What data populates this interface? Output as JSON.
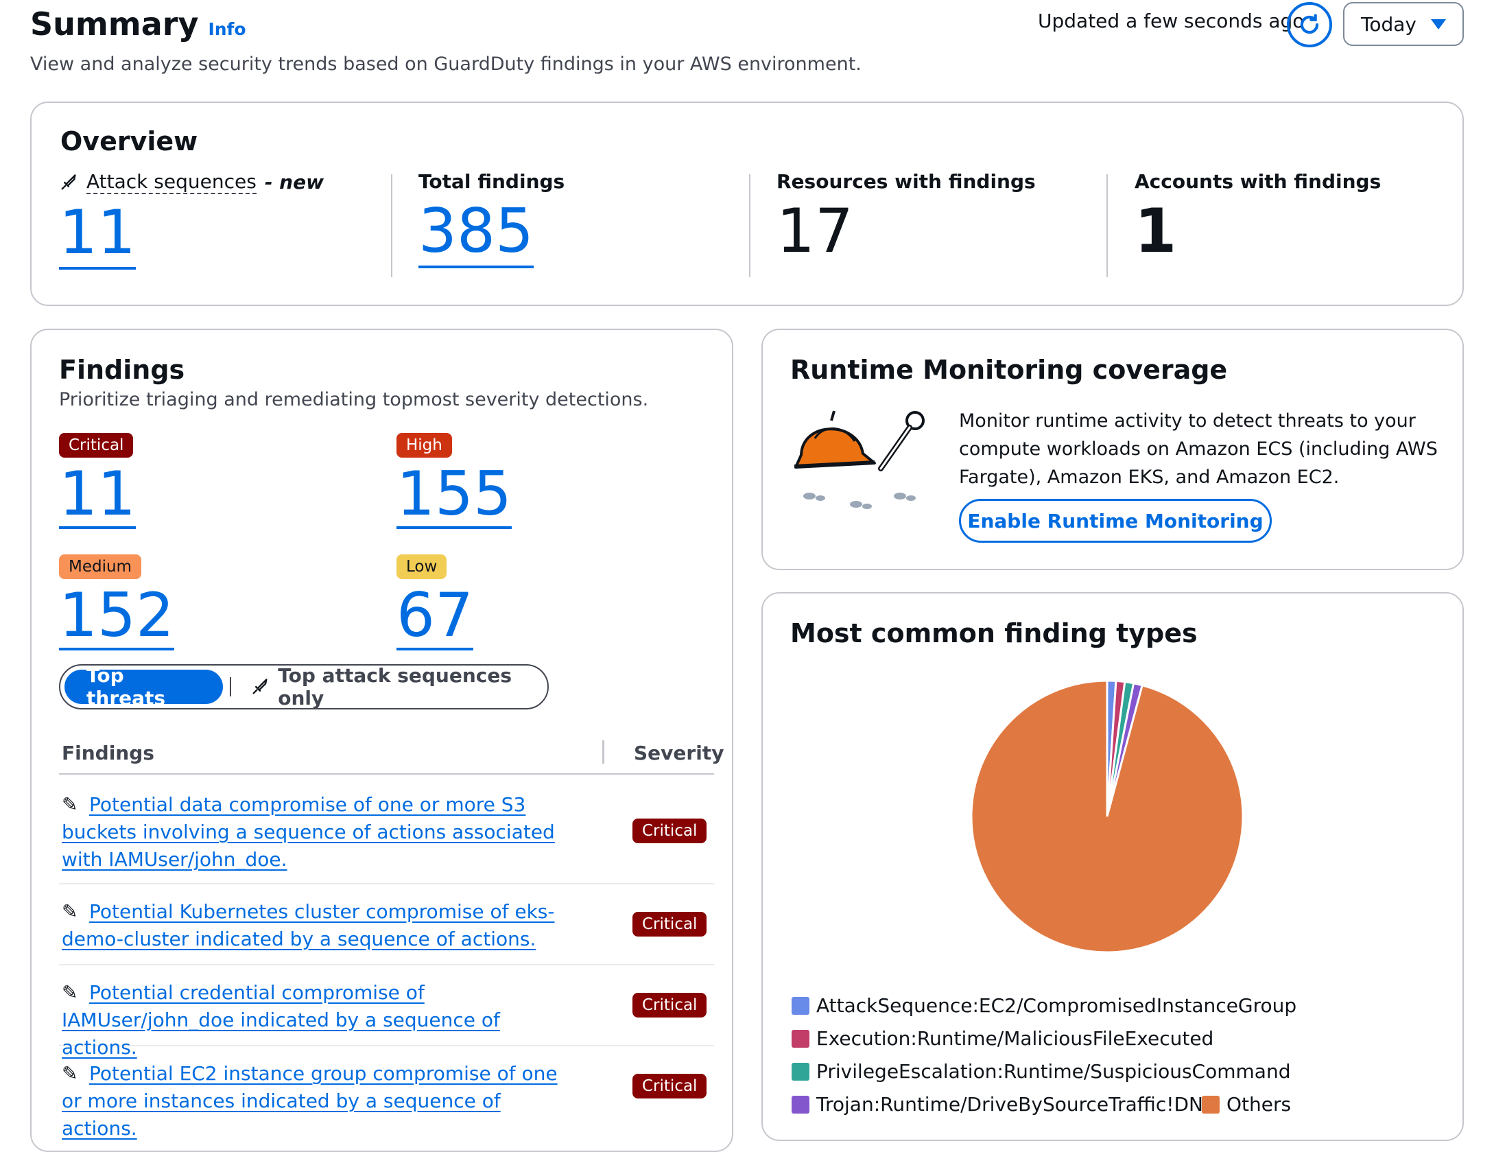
{
  "header": {
    "title": "Summary",
    "info": "Info",
    "subtitle": "View and analyze security trends based on GuardDuty findings in your AWS environment.",
    "updated": "Updated a few seconds ago",
    "range": "Today"
  },
  "overview": {
    "title": "Overview",
    "attack_label": "Attack sequences",
    "attack_new": "- new",
    "attack_value": "11",
    "total_label": "Total findings",
    "total_value": "385",
    "resources_label": "Resources with findings",
    "resources_value": "17",
    "accounts_label": "Accounts with findings",
    "accounts_value": "1"
  },
  "findings": {
    "title": "Findings",
    "desc": "Prioritize triaging and remediating topmost severity detections.",
    "critical_label": "Critical",
    "critical_value": "11",
    "high_label": "High",
    "high_value": "155",
    "medium_label": "Medium",
    "medium_value": "152",
    "low_label": "Low",
    "low_value": "67",
    "seg_top_threats": "Top threats",
    "seg_attack_only": "Top attack sequences only",
    "col_findings": "Findings",
    "col_severity": "Severity",
    "rows": [
      {
        "text": "Potential data compromise of one or more S3 buckets involving a sequence of actions associated with IAMUser/john_doe.",
        "severity": "Critical"
      },
      {
        "text": "Potential Kubernetes cluster compromise of eks-demo-cluster indicated by a sequence of actions.",
        "severity": "Critical"
      },
      {
        "text": "Potential credential compromise of IAMUser/john_doe indicated by a sequence of actions.",
        "severity": "Critical"
      },
      {
        "text": "Potential EC2 instance group compromise of one or more instances indicated by a sequence of actions.",
        "severity": "Critical"
      }
    ]
  },
  "runtime": {
    "title": "Runtime Monitoring coverage",
    "desc": "Monitor runtime activity to detect threats to your compute workloads on Amazon ECS (including AWS Fargate), Amazon EKS, and Amazon EC2.",
    "button": "Enable Runtime Monitoring"
  },
  "common": {
    "title": "Most common finding types"
  },
  "chart_data": {
    "type": "pie",
    "categories": [
      "AttackSequence:EC2/CompromisedInstanceGroup",
      "Execution:Runtime/MaliciousFileExecuted",
      "PrivilegeEscalation:Runtime/SuspiciousCommand",
      "Trojan:Runtime/DriveBySourceTraffic!DNS",
      "Others"
    ],
    "values": [
      1,
      1,
      1,
      1,
      92
    ],
    "colors": [
      "#688ae8",
      "#c33d69",
      "#2ea597",
      "#8456ce",
      "#e07941"
    ],
    "legend_position": "bottom"
  },
  "colors": {
    "accent": "#006ce0",
    "critical": "#870303",
    "high": "#ce3311",
    "medium": "#f89256",
    "low": "#f2cd54"
  }
}
